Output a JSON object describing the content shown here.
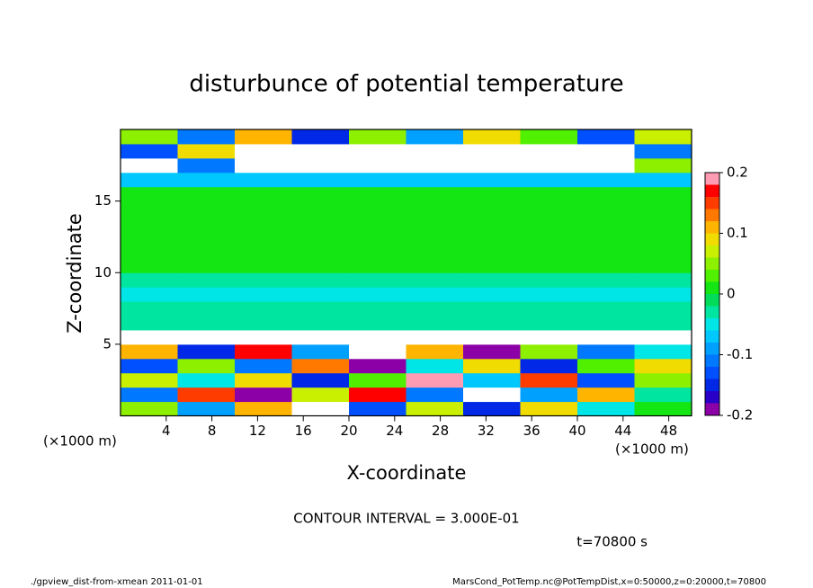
{
  "chart_data": {
    "type": "contour",
    "title": "disturbunce of potential temperature",
    "x_label": "X-coordinate",
    "y_label": "Z-coordinate",
    "x_unit_label": "(×1000 m)",
    "contour_interval": "CONTOUR INTERVAL = 3.000E-01",
    "time_label": "t=70800 s",
    "footer_left": "./gpview_dist-from-xmean   2011-01-01",
    "footer_right": "MarsCond_PotTemp.nc@PotTempDist,x=0:50000,z=0:20000,t=70800",
    "xlim": [
      0,
      50
    ],
    "ylim": [
      0,
      20
    ],
    "xticks": [
      4,
      8,
      12,
      16,
      20,
      24,
      28,
      32,
      36,
      40,
      44,
      48
    ],
    "yticks": [
      5,
      10,
      15
    ],
    "x_edges": [
      0,
      5,
      10,
      15,
      20,
      25,
      30,
      35,
      40,
      45,
      50
    ],
    "z_edges": [
      0,
      1,
      2,
      3,
      4,
      5,
      6,
      7,
      8,
      9,
      10,
      11,
      12,
      13,
      14,
      15,
      16,
      17,
      18,
      19,
      20
    ],
    "values": [
      [
        0.05,
        -0.08,
        0.12,
        0.25,
        -0.12,
        0.08,
        -0.15,
        0.1,
        -0.05,
        0.02
      ],
      [
        -0.1,
        0.15,
        -0.2,
        0.08,
        0.18,
        -0.1,
        0.25,
        -0.08,
        0.12,
        -0.03
      ],
      [
        0.08,
        -0.05,
        0.1,
        -0.15,
        0.03,
        0.2,
        -0.06,
        0.15,
        -0.12,
        0.06
      ],
      [
        -0.12,
        0.06,
        -0.1,
        0.14,
        -0.18,
        -0.04,
        0.1,
        -0.14,
        0.04,
        0.1
      ],
      [
        0.12,
        -0.15,
        0.18,
        -0.08,
        -0.25,
        0.12,
        -0.2,
        0.05,
        -0.1,
        -0.05
      ],
      [
        0.3,
        0.3,
        -0.3,
        0.3,
        -0.3,
        0.3,
        -0.3,
        0.3,
        0.3,
        0.3
      ],
      [
        -0.03,
        -0.03,
        -0.03,
        -0.03,
        -0.03,
        -0.03,
        -0.03,
        -0.03,
        -0.03,
        -0.03
      ],
      [
        -0.02,
        -0.02,
        -0.03,
        -0.02,
        -0.02,
        -0.02,
        -0.02,
        -0.03,
        -0.02,
        -0.02
      ],
      [
        -0.05,
        -0.05,
        -0.05,
        -0.05,
        -0.05,
        -0.05,
        -0.05,
        -0.05,
        -0.05,
        -0.05
      ],
      [
        -0.03,
        -0.03,
        -0.03,
        -0.03,
        -0.03,
        -0.03,
        -0.03,
        -0.03,
        -0.03,
        -0.03
      ],
      [
        0.01,
        0.01,
        0.01,
        0.01,
        0.01,
        0.01,
        0.01,
        0.01,
        0.01,
        0.01
      ],
      [
        0.01,
        0.01,
        0.01,
        0.01,
        0.01,
        0.01,
        0.01,
        0.01,
        0.01,
        0.01
      ],
      [
        0.01,
        0.01,
        0.01,
        0.01,
        0.01,
        0.01,
        0.01,
        0.01,
        0.01,
        0.01
      ],
      [
        0.01,
        0.01,
        0.01,
        0.01,
        0.01,
        0.01,
        0.01,
        0.01,
        0.01,
        0.01
      ],
      [
        0.01,
        0.01,
        0.01,
        0.01,
        0.01,
        0.01,
        0.01,
        0.01,
        0.01,
        0.01
      ],
      [
        0.01,
        0.01,
        0.01,
        0.01,
        0.01,
        0.01,
        0.01,
        0.01,
        0.01,
        0.01
      ],
      [
        -0.07,
        -0.07,
        -0.07,
        -0.07,
        -0.07,
        -0.07,
        -0.07,
        -0.07,
        -0.07,
        -0.07
      ],
      [
        0.25,
        -0.1,
        0.3,
        0.3,
        -0.3,
        0.3,
        0.3,
        -0.3,
        0.3,
        0.05
      ],
      [
        -0.12,
        0.1,
        -0.3,
        0.3,
        0.3,
        0.3,
        -0.3,
        0.3,
        0.3,
        -0.1
      ],
      [
        0.05,
        -0.1,
        0.12,
        -0.15,
        0.06,
        -0.08,
        0.1,
        0.03,
        -0.12,
        0.08
      ]
    ],
    "out_of_range_color": "#ffffff",
    "colorbar": {
      "levels": [
        -0.2,
        -0.18,
        -0.16,
        -0.14,
        -0.12,
        -0.1,
        -0.08,
        -0.06,
        -0.04,
        -0.02,
        0,
        0.02,
        0.04,
        0.06,
        0.08,
        0.1,
        0.12,
        0.14,
        0.16,
        0.18,
        0.2
      ],
      "colors": [
        "#8c00a8",
        "#2800c8",
        "#0028e6",
        "#0050ff",
        "#0078ff",
        "#00a0ff",
        "#00c8ff",
        "#00e6e6",
        "#00e6a0",
        "#00dc5a",
        "#14e614",
        "#50f000",
        "#8cf000",
        "#c8f000",
        "#f0dc00",
        "#ffb400",
        "#ff7800",
        "#ff3c00",
        "#ff0000",
        "#ff9cb4"
      ],
      "ticks": [
        -0.2,
        -0.1,
        0,
        0.1,
        0.2
      ]
    }
  }
}
